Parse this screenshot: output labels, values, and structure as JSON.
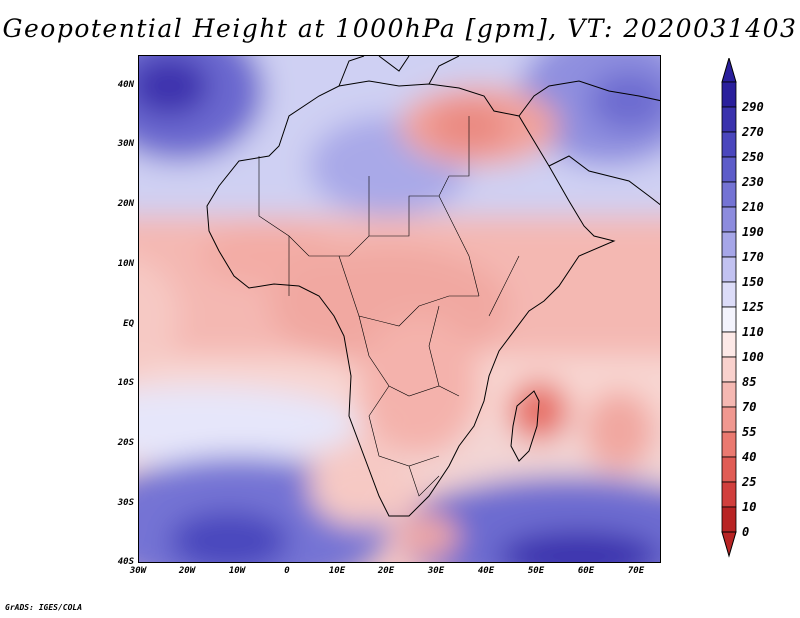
{
  "title": "Geopotential Height at 1000hPa [gpm], VT: 2020031403",
  "credit": "GrADS: IGES/COLA",
  "map": {
    "lat_labels": [
      "40N",
      "30N",
      "20N",
      "10N",
      "EQ",
      "10S",
      "20S",
      "30S",
      "40S"
    ],
    "lon_labels": [
      "30W",
      "20W",
      "10W",
      "0",
      "10E",
      "20E",
      "30E",
      "40E",
      "50E",
      "60E",
      "70E"
    ]
  },
  "colorbar": {
    "labels": [
      "290",
      "270",
      "250",
      "230",
      "210",
      "190",
      "170",
      "150",
      "125",
      "110",
      "100",
      "85",
      "70",
      "55",
      "40",
      "25",
      "10",
      "0"
    ],
    "colors": [
      "#2a1f9c",
      "#3a32ad",
      "#4a46bd",
      "#5d5cc9",
      "#7473d4",
      "#8d8cde",
      "#a6a6e8",
      "#c2c2f1",
      "#dcdcf8",
      "#f4f4fd",
      "#fde9e7",
      "#f9d1cd",
      "#f5b8b2",
      "#f09890",
      "#ea7970",
      "#e05c55",
      "#d13f3d",
      "#b82424"
    ]
  }
}
